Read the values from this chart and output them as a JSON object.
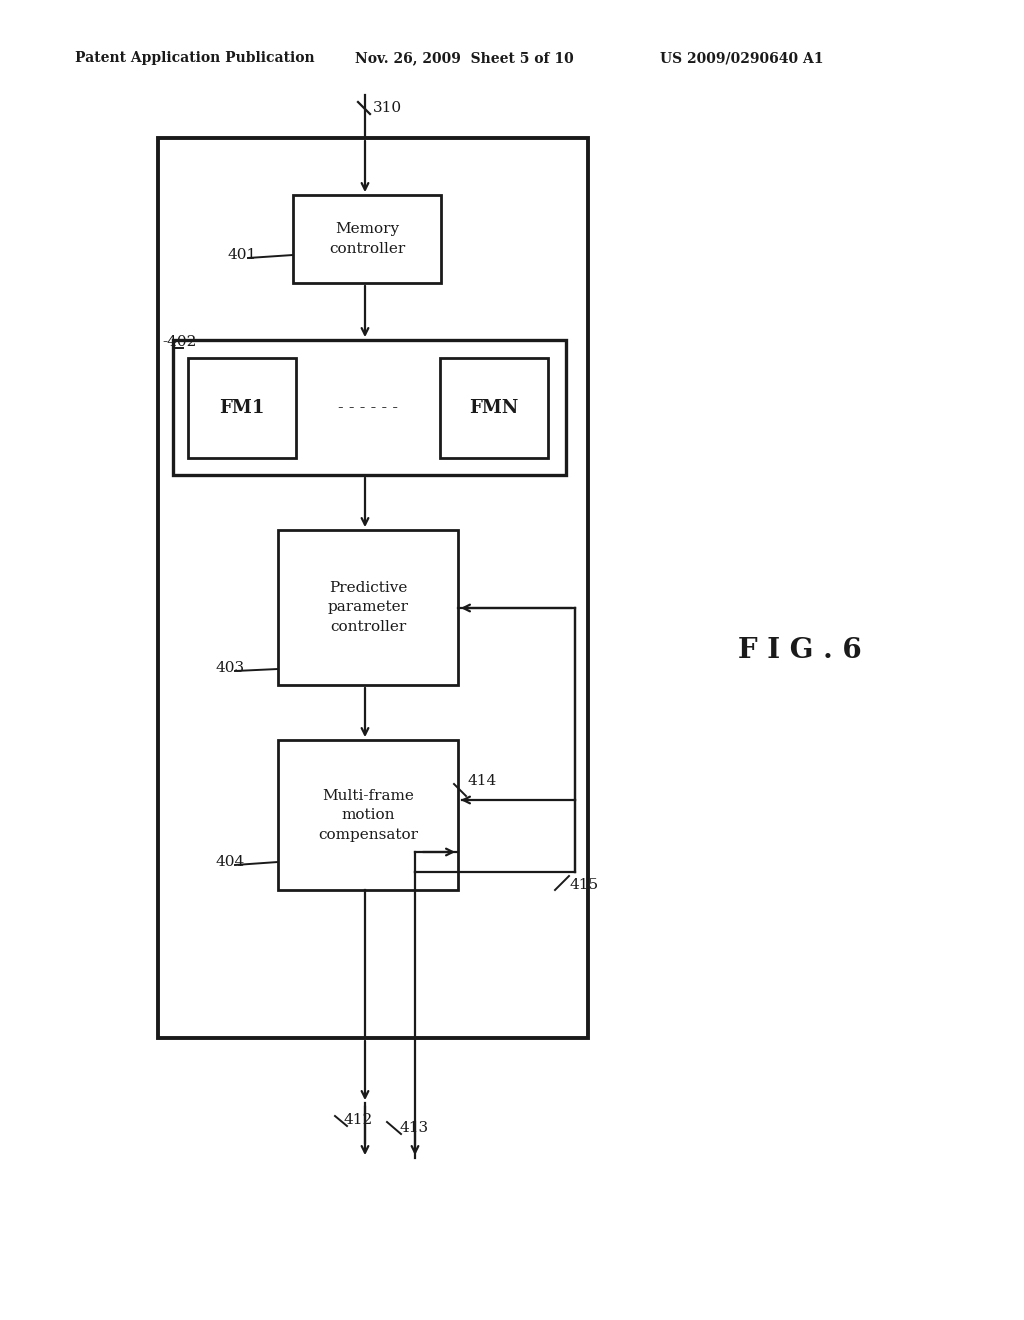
{
  "header_left": "Patent Application Publication",
  "header_mid": "Nov. 26, 2009  Sheet 5 of 10",
  "header_right": "US 2009/0290640 A1",
  "fig_label": "F I G . 6",
  "label_310": "310",
  "label_401": "401",
  "label_402": "-402",
  "label_403": "403",
  "label_404": "404",
  "label_412": "412",
  "label_413": "413",
  "label_414": "414",
  "label_415": "415",
  "box_memory_controller": "Memory\ncontroller",
  "box_fm1": "FM1",
  "box_fmn": "FMN",
  "box_ppc": "Predictive\nparameter\ncontroller",
  "box_mfmc": "Multi-frame\nmotion\ncompensator",
  "bg_color": "#ffffff",
  "line_color": "#1a1a1a",
  "text_color": "#1a1a1a"
}
